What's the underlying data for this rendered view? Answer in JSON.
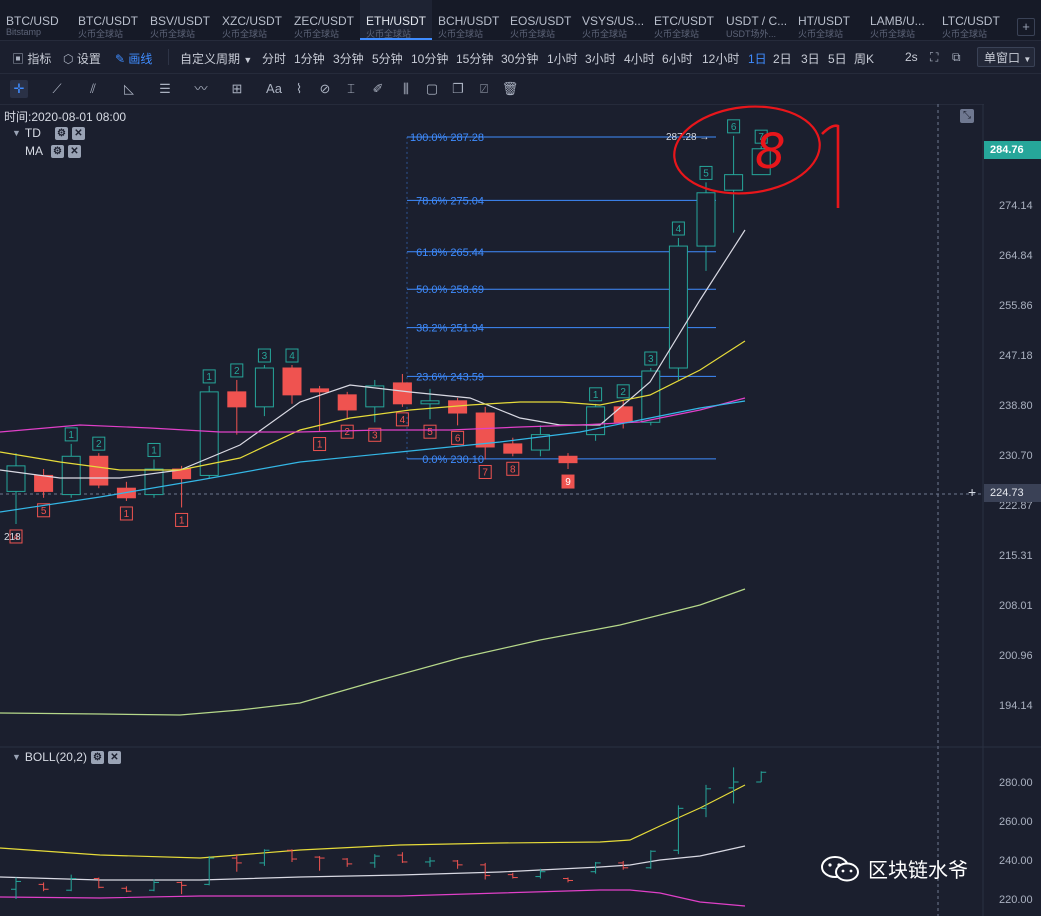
{
  "tabs": [
    {
      "pair": "BTC/USD",
      "source": "Bitstamp"
    },
    {
      "pair": "BTC/USDT",
      "source": "火币全球站"
    },
    {
      "pair": "BSV/USDT",
      "source": "火币全球站"
    },
    {
      "pair": "XZC/USDT",
      "source": "火币全球站"
    },
    {
      "pair": "ZEC/USDT",
      "source": "火币全球站"
    },
    {
      "pair": "ETH/USDT",
      "source": "火币全球站"
    },
    {
      "pair": "BCH/USDT",
      "source": "火币全球站"
    },
    {
      "pair": "EOS/USDT",
      "source": "火币全球站"
    },
    {
      "pair": "VSYS/US...",
      "source": "火币全球站"
    },
    {
      "pair": "ETC/USDT",
      "source": "火币全球站"
    },
    {
      "pair": "USDT / C...",
      "source": "USDT场外..."
    },
    {
      "pair": "HT/USDT",
      "source": "火币全球站"
    },
    {
      "pair": "LAMB/U...",
      "source": "火币全球站"
    },
    {
      "pair": "LTC/USDT",
      "source": "火币全球站"
    }
  ],
  "toolbar": {
    "indicator": "指标",
    "settings": "设置",
    "draw": "画线",
    "custom_period": "自定义周期",
    "periods": [
      "分时",
      "1分钟",
      "3分钟",
      "5分钟",
      "10分钟",
      "15分钟",
      "30分钟",
      "1小时",
      "3小时",
      "4小时",
      "6小时",
      "12小时",
      "1日",
      "2日",
      "3日",
      "5日",
      "周K"
    ],
    "active_period": "1日",
    "refresh": "2s",
    "window_mode": "单窗口"
  },
  "chart": {
    "time_label": "时间:2020-08-01 08:00",
    "indicators": [
      "TD",
      "MA"
    ],
    "boll_label": "BOLL(20,2)",
    "low_label": "218",
    "high_label": "287.28",
    "current_price": "284.76",
    "crosshair_price": "224.73",
    "price_axis": [
      "274.14",
      "264.84",
      "255.86",
      "247.18",
      "238.80",
      "230.70",
      "222.87",
      "215.31",
      "208.01",
      "200.96",
      "194.14"
    ],
    "boll_axis": [
      "280.00",
      "260.00",
      "240.00",
      "220.00"
    ],
    "fib_levels": [
      {
        "label": "100.0% 287.28",
        "value": 287.28
      },
      {
        "label": "78.6% 275.04",
        "value": 275.04
      },
      {
        "label": "61.8% 265.44",
        "value": 265.44
      },
      {
        "label": "50.0% 258.69",
        "value": 258.69
      },
      {
        "label": "38.2% 251.94",
        "value": 251.94
      },
      {
        "label": "23.6% 243.59",
        "value": 243.59
      },
      {
        "label": "0.0% 230.10",
        "value": 230.1
      }
    ],
    "colors": {
      "up": "#26a69a",
      "down": "#ef5350",
      "fib": "#3f8cff",
      "annotation": "#e8161b"
    }
  },
  "chart_data": {
    "type": "candlestick",
    "candles": [
      {
        "o": 225.0,
        "h": 231.0,
        "l": 220.0,
        "c": 229.0,
        "td": "4",
        "tdc": "down"
      },
      {
        "o": 227.5,
        "h": 228.5,
        "l": 224.0,
        "c": 225.0,
        "td": "5",
        "tdc": "down"
      },
      {
        "o": 224.5,
        "h": 232.5,
        "l": 224.0,
        "c": 230.5,
        "td": "1",
        "tdc": "up"
      },
      {
        "o": 230.5,
        "h": 231.0,
        "l": 225.5,
        "c": 226.0,
        "td": "2",
        "tdc": "up"
      },
      {
        "o": 225.5,
        "h": 226.5,
        "l": 223.5,
        "c": 224.0,
        "td": "1",
        "tdc": "down"
      },
      {
        "o": 224.5,
        "h": 230.0,
        "l": 224.0,
        "c": 228.5,
        "td": "1",
        "tdc": "up"
      },
      {
        "o": 228.5,
        "h": 229.0,
        "l": 222.5,
        "c": 227.0,
        "td": "1",
        "tdc": "down"
      },
      {
        "o": 227.5,
        "h": 242.0,
        "l": 227.0,
        "c": 241.0,
        "td": "1",
        "tdc": "up"
      },
      {
        "o": 241.0,
        "h": 243.0,
        "l": 234.0,
        "c": 238.5,
        "td": "2",
        "tdc": "up"
      },
      {
        "o": 238.5,
        "h": 245.5,
        "l": 237.0,
        "c": 245.0,
        "td": "3",
        "tdc": "up"
      },
      {
        "o": 245.0,
        "h": 245.5,
        "l": 239.0,
        "c": 240.5,
        "td": "4",
        "tdc": "up"
      },
      {
        "o": 241.5,
        "h": 242.0,
        "l": 234.5,
        "c": 241.0,
        "td": "1",
        "tdc": "down"
      },
      {
        "o": 240.5,
        "h": 241.0,
        "l": 236.5,
        "c": 238.0,
        "td": "2",
        "tdc": "down"
      },
      {
        "o": 238.5,
        "h": 243.0,
        "l": 236.0,
        "c": 242.0,
        "td": "3",
        "tdc": "down"
      },
      {
        "o": 242.5,
        "h": 244.0,
        "l": 238.5,
        "c": 239.0,
        "td": "4",
        "tdc": "down"
      },
      {
        "o": 239.0,
        "h": 241.5,
        "l": 236.5,
        "c": 239.5,
        "td": "5",
        "tdc": "down"
      },
      {
        "o": 239.5,
        "h": 240.0,
        "l": 235.5,
        "c": 237.5,
        "td": "6",
        "tdc": "down"
      },
      {
        "o": 237.5,
        "h": 238.5,
        "l": 230.0,
        "c": 232.0,
        "td": "7",
        "tdc": "down"
      },
      {
        "o": 232.5,
        "h": 233.5,
        "l": 230.5,
        "c": 231.0,
        "td": "8",
        "tdc": "down"
      },
      {
        "o": 231.5,
        "h": 235.5,
        "l": 230.5,
        "c": 234.0,
        "td": "",
        "tdc": "down"
      },
      {
        "o": 230.5,
        "h": 231.0,
        "l": 228.5,
        "c": 229.5,
        "td": "9",
        "tdc": "down"
      },
      {
        "o": 234.0,
        "h": 239.0,
        "l": 233.0,
        "c": 238.5,
        "td": "1",
        "tdc": "up"
      },
      {
        "o": 238.5,
        "h": 239.5,
        "l": 235.0,
        "c": 236.0,
        "td": "2",
        "tdc": "up"
      },
      {
        "o": 236.0,
        "h": 245.0,
        "l": 235.5,
        "c": 244.5,
        "td": "3",
        "tdc": "up"
      },
      {
        "o": 245.0,
        "h": 268.0,
        "l": 243.0,
        "c": 266.5,
        "td": "4",
        "tdc": "up"
      },
      {
        "o": 266.5,
        "h": 278.5,
        "l": 262.0,
        "c": 276.5,
        "td": "5",
        "tdc": "up"
      },
      {
        "o": 277.0,
        "h": 287.5,
        "l": 269.0,
        "c": 280.0,
        "td": "6",
        "tdc": "up"
      },
      {
        "o": 280.0,
        "h": 285.5,
        "l": 280.0,
        "c": 285.0,
        "td": "7",
        "tdc": "up"
      }
    ]
  },
  "annotation": {
    "text": "8 1"
  },
  "watermark": {
    "text": "区块链水爷"
  }
}
